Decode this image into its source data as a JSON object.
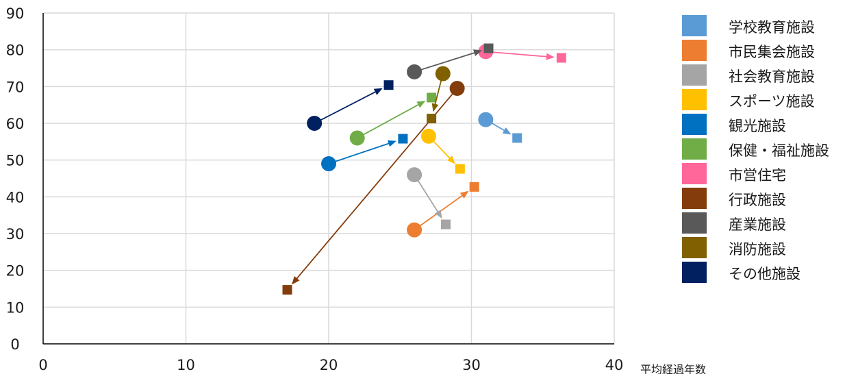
{
  "chart_data": {
    "type": "scatter",
    "title": "",
    "xlabel": "平均経過年数",
    "ylabel": "",
    "xlim": [
      0,
      40
    ],
    "ylim": [
      0,
      90
    ],
    "x_ticks": [
      "0",
      "10",
      "20",
      "30",
      "40"
    ],
    "y_ticks": [
      "0",
      "10",
      "20",
      "30",
      "40",
      "50",
      "60",
      "70",
      "80",
      "90"
    ],
    "grid": true,
    "legend_position": "right",
    "series": [
      {
        "name": "学校教育施設",
        "color": "#5B9BD5",
        "from": [
          31,
          61
        ],
        "to": [
          33.2,
          56
        ]
      },
      {
        "name": "市民集会施設",
        "color": "#ED7D31",
        "from": [
          26,
          31
        ],
        "to": [
          30.2,
          42.7
        ]
      },
      {
        "name": "社会教育施設",
        "color": "#A5A5A5",
        "from": [
          26,
          46
        ],
        "to": [
          28.2,
          32.5
        ]
      },
      {
        "name": "スポーツ施設",
        "color": "#FFC000",
        "from": [
          27,
          56.5
        ],
        "to": [
          29.2,
          47.6
        ]
      },
      {
        "name": "観光施設",
        "color": "#0070C0",
        "from": [
          20,
          49
        ],
        "to": [
          25.2,
          55.8
        ]
      },
      {
        "name": "保健・福祉施設",
        "color": "#70AD47",
        "from": [
          22,
          56
        ],
        "to": [
          27.2,
          67
        ]
      },
      {
        "name": "市営住宅",
        "color": "#FF6699",
        "from": [
          31,
          79.5
        ],
        "to": [
          36.3,
          77.8
        ]
      },
      {
        "name": "行政施設",
        "color": "#843C0C",
        "from": [
          29,
          69.5
        ],
        "to": [
          17.1,
          14.7
        ]
      },
      {
        "name": "産業施設",
        "color": "#595959",
        "from": [
          26,
          74
        ],
        "to": [
          31.2,
          80.4
        ]
      },
      {
        "name": "消防施設",
        "color": "#806000",
        "from": [
          28,
          73.5
        ],
        "to": [
          27.2,
          61.3
        ]
      },
      {
        "name": "その他施設",
        "color": "#002060",
        "from": [
          19,
          60
        ],
        "to": [
          24.2,
          70.4
        ]
      }
    ]
  }
}
